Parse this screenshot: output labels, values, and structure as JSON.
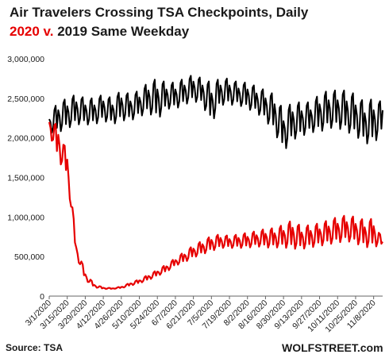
{
  "title_line1": "Air Travelers Crossing TSA Checkpoints, Daily",
  "title_line2_highlight": "2020 v.",
  "title_line2_rest": " 2019 Same Weekday",
  "source": "Source: TSA",
  "brand": "WOLFSTREET.com",
  "chart_data": {
    "type": "line",
    "title": "Air Travelers Crossing TSA Checkpoints, Daily 2020 v. 2019 Same Weekday",
    "xlabel": "",
    "ylabel": "",
    "ylim": [
      0,
      3000000
    ],
    "y_ticks": [
      0,
      500000,
      1000000,
      1500000,
      2000000,
      2500000,
      3000000
    ],
    "y_tick_labels": [
      "0",
      "500,000",
      "1,000,000",
      "1,500,000",
      "2,000,000",
      "2,500,000",
      "3,000,000"
    ],
    "x_start": "2020-03-01",
    "x_end": "2020-11-15",
    "x_tick_labels": [
      "3/1/2020",
      "3/15/2020",
      "3/29/2020",
      "4/12/2020",
      "4/26/2020",
      "5/10/2020",
      "5/24/2020",
      "6/7/2020",
      "6/21/2020",
      "7/5/2020",
      "7/19/2020",
      "8/2/2020",
      "8/16/2020",
      "8/30/2020",
      "9/13/2020",
      "9/27/2020",
      "10/11/2020",
      "10/25/2020",
      "11/8/2020"
    ],
    "grid": false,
    "legend": "none",
    "series": [
      {
        "color": "#000000",
        "weekly_anchors": [
          [
            "2020-03-01",
            2300000,
            2050000
          ],
          [
            "2020-03-08",
            2450000,
            2050000
          ],
          [
            "2020-03-15",
            2500000,
            2100000
          ],
          [
            "2020-03-22",
            2550000,
            2150000
          ],
          [
            "2020-03-29",
            2500000,
            2150000
          ],
          [
            "2020-04-05",
            2500000,
            2150000
          ],
          [
            "2020-04-12",
            2550000,
            2200000
          ],
          [
            "2020-04-19",
            2500000,
            2150000
          ],
          [
            "2020-04-26",
            2600000,
            2200000
          ],
          [
            "2020-05-03",
            2550000,
            2200000
          ],
          [
            "2020-05-10",
            2600000,
            2250000
          ],
          [
            "2020-05-17",
            2700000,
            2300000
          ],
          [
            "2020-05-24",
            2750000,
            2200000
          ],
          [
            "2020-05-31",
            2700000,
            2350000
          ],
          [
            "2020-06-07",
            2700000,
            2350000
          ],
          [
            "2020-06-14",
            2750000,
            2400000
          ],
          [
            "2020-06-21",
            2800000,
            2450000
          ],
          [
            "2020-06-28",
            2750000,
            2400000
          ],
          [
            "2020-07-05",
            2700000,
            2150000
          ],
          [
            "2020-07-12",
            2750000,
            2400000
          ],
          [
            "2020-07-19",
            2750000,
            2400000
          ],
          [
            "2020-07-26",
            2700000,
            2400000
          ],
          [
            "2020-08-02",
            2700000,
            2350000
          ],
          [
            "2020-08-09",
            2650000,
            2300000
          ],
          [
            "2020-08-16",
            2600000,
            2200000
          ],
          [
            "2020-08-23",
            2550000,
            2050000
          ],
          [
            "2020-08-30",
            2350000,
            1800000
          ],
          [
            "2020-09-06",
            2450000,
            1950000
          ],
          [
            "2020-09-13",
            2450000,
            2000000
          ],
          [
            "2020-09-20",
            2450000,
            2050000
          ],
          [
            "2020-09-27",
            2550000,
            2050000
          ],
          [
            "2020-10-04",
            2600000,
            2100000
          ],
          [
            "2020-10-11",
            2600000,
            2100000
          ],
          [
            "2020-10-18",
            2600000,
            2050000
          ],
          [
            "2020-10-25",
            2550000,
            2000000
          ],
          [
            "2020-11-01",
            2450000,
            1900000
          ],
          [
            "2020-11-08",
            2500000,
            1900000
          ],
          [
            "2020-11-15",
            2450000,
            2050000
          ]
        ]
      },
      {
        "color": "#e60000",
        "weekly_anchors": [
          [
            "2020-03-01",
            2250000,
            2050000
          ],
          [
            "2020-03-08",
            2150000,
            1700000
          ],
          [
            "2020-03-15",
            1800000,
            1500000
          ],
          [
            "2020-03-22",
            650000,
            500000
          ],
          [
            "2020-03-29",
            300000,
            200000
          ],
          [
            "2020-04-05",
            150000,
            110000
          ],
          [
            "2020-04-12",
            110000,
            90000
          ],
          [
            "2020-04-19",
            100000,
            90000
          ],
          [
            "2020-04-26",
            120000,
            100000
          ],
          [
            "2020-05-03",
            170000,
            130000
          ],
          [
            "2020-05-10",
            210000,
            160000
          ],
          [
            "2020-05-17",
            270000,
            200000
          ],
          [
            "2020-05-24",
            330000,
            250000
          ],
          [
            "2020-05-31",
            400000,
            300000
          ],
          [
            "2020-06-07",
            480000,
            380000
          ],
          [
            "2020-06-14",
            560000,
            420000
          ],
          [
            "2020-06-21",
            640000,
            480000
          ],
          [
            "2020-06-28",
            700000,
            520000
          ],
          [
            "2020-07-05",
            760000,
            560000
          ],
          [
            "2020-07-12",
            780000,
            600000
          ],
          [
            "2020-07-19",
            760000,
            600000
          ],
          [
            "2020-07-26",
            780000,
            600000
          ],
          [
            "2020-08-02",
            800000,
            600000
          ],
          [
            "2020-08-09",
            820000,
            620000
          ],
          [
            "2020-08-16",
            850000,
            600000
          ],
          [
            "2020-08-23",
            860000,
            600000
          ],
          [
            "2020-08-30",
            900000,
            600000
          ],
          [
            "2020-09-06",
            960000,
            580000
          ],
          [
            "2020-09-13",
            880000,
            580000
          ],
          [
            "2020-09-20",
            900000,
            600000
          ],
          [
            "2020-09-27",
            920000,
            620000
          ],
          [
            "2020-10-04",
            960000,
            640000
          ],
          [
            "2020-10-11",
            1000000,
            660000
          ],
          [
            "2020-10-18",
            1020000,
            680000
          ],
          [
            "2020-10-25",
            1000000,
            650000
          ],
          [
            "2020-11-01",
            960000,
            600000
          ],
          [
            "2020-11-08",
            980000,
            600000
          ],
          [
            "2020-11-15",
            700000,
            650000
          ]
        ]
      }
    ]
  }
}
